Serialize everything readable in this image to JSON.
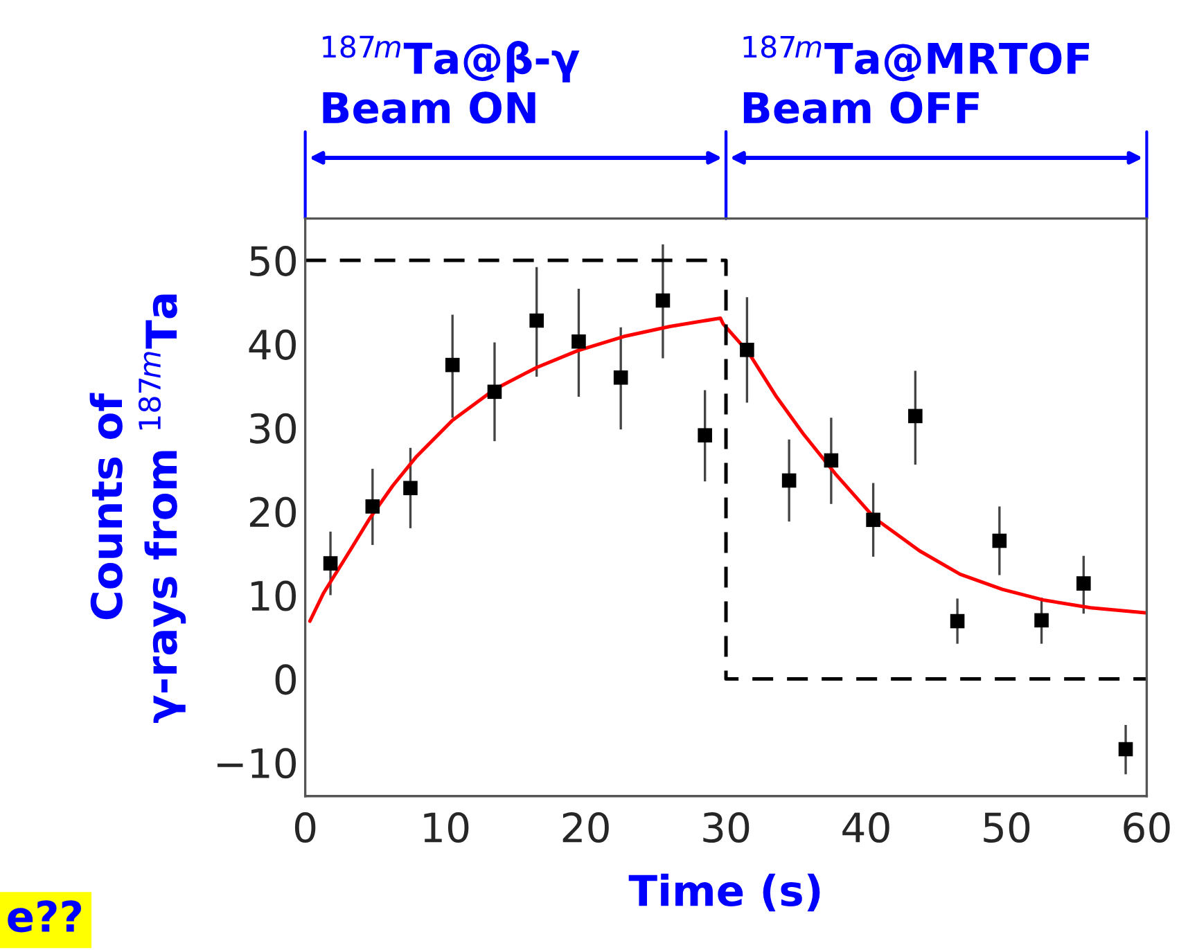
{
  "chart_data": {
    "type": "scatter",
    "xlabel": "Time (s)",
    "ylabel": "Counts of\nγ-rays from $^{187m}$Ta",
    "xlim": [
      0,
      60
    ],
    "ylim": [
      -14,
      55
    ],
    "xticks": [
      0,
      10,
      20,
      30,
      40,
      50,
      60
    ],
    "yticks": [
      {
        "value": -10,
        "label": "−10"
      },
      0,
      10,
      20,
      30,
      40,
      50
    ],
    "grid": false,
    "legend": false,
    "series": [
      {
        "color": "#000000",
        "marker": "square",
        "x": [
          1.8,
          4.8,
          7.5,
          10.5,
          13.5,
          16.5,
          19.5,
          22.5,
          25.5,
          28.5,
          31.5,
          34.5,
          37.5,
          40.5,
          43.5,
          46.5,
          49.5,
          52.5,
          55.5,
          58.5
        ],
        "values": [
          13.8,
          20.6,
          22.8,
          37.5,
          34.3,
          42.8,
          40.3,
          36.0,
          45.2,
          29.1,
          39.3,
          23.7,
          26.1,
          19.0,
          31.4,
          6.9,
          16.5,
          7.0,
          11.4,
          -8.4
        ],
        "errors": [
          [
            10.0,
            17.6
          ],
          [
            16.0,
            25.1
          ],
          [
            18.0,
            27.6
          ],
          [
            31.2,
            43.5
          ],
          [
            28.4,
            40.2
          ],
          [
            36.1,
            49.2
          ],
          [
            33.7,
            46.6
          ],
          [
            29.8,
            42.0
          ],
          [
            38.3,
            51.9
          ],
          [
            23.6,
            34.5
          ],
          [
            33.0,
            45.6
          ],
          [
            18.8,
            28.6
          ],
          [
            20.9,
            31.2
          ],
          [
            14.6,
            23.4
          ],
          [
            25.6,
            36.8
          ],
          [
            4.2,
            9.6
          ],
          [
            12.4,
            20.6
          ],
          [
            4.2,
            9.7
          ],
          [
            7.8,
            14.7
          ],
          [
            -11.4,
            -5.5
          ]
        ]
      },
      {
        "type": "line",
        "color": "#ff0000",
        "line_style": "solid",
        "marker": "none",
        "x": [
          0.33,
          1.32,
          2.96,
          4.61,
          6.25,
          7.9,
          10.5,
          13.5,
          16.5,
          19.4,
          22.7,
          26.0,
          29.6,
          29.8,
          31.6,
          33.6,
          35.5,
          37.8,
          40.6,
          43.8,
          46.7,
          49.7,
          52.7,
          56.0,
          59.9
        ],
        "values": [
          6.9,
          10.3,
          14.7,
          19.2,
          23.1,
          26.5,
          30.9,
          34.6,
          37.2,
          39.2,
          40.9,
          42.1,
          43.1,
          42.4,
          39.0,
          33.7,
          29.3,
          24.5,
          19.2,
          15.3,
          12.5,
          10.7,
          9.4,
          8.5,
          7.9
        ]
      },
      {
        "type": "line",
        "color": "#000000",
        "line_style": "dashed",
        "marker": "none",
        "x": [
          0,
          30,
          30,
          60
        ],
        "values": [
          50,
          50,
          0,
          0
        ]
      }
    ],
    "annotations": [
      "$^{187m}$Ta@β-γ\nBeam ON",
      "$^{187m}$Ta@MRTOF\nBeam OFF",
      "e??"
    ]
  }
}
